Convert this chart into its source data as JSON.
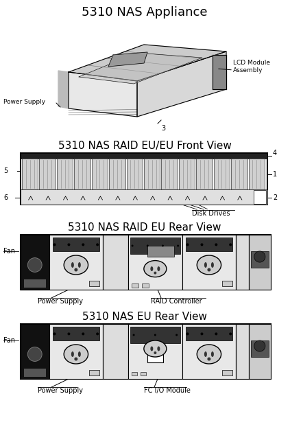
{
  "bg_color": "#ffffff",
  "title_color": "#000000",
  "section1_title": "5310 NAS Appliance",
  "section2_title": "5310 NAS RAID EU/EU Front View",
  "section3_title": "5310 NAS RAID EU Rear View",
  "section4_title": "5310 NAS EU Rear View",
  "label_lcd": "LCD Module\nAssembly",
  "label_power_supply": "Power Supply",
  "label_power_supply2": "Power Supply",
  "label_power_supply3": "Power Supply",
  "label_disk_drives": "Disk Drives",
  "label_raid_controller": "RAID Controller",
  "label_fc_io": "FC I/O Module",
  "label_fan": "Fan",
  "label_fan2": "Fan",
  "label_3": "3",
  "label_4": "4",
  "label_5": "5",
  "label_6": "6",
  "label_1": "1",
  "label_2": "2"
}
